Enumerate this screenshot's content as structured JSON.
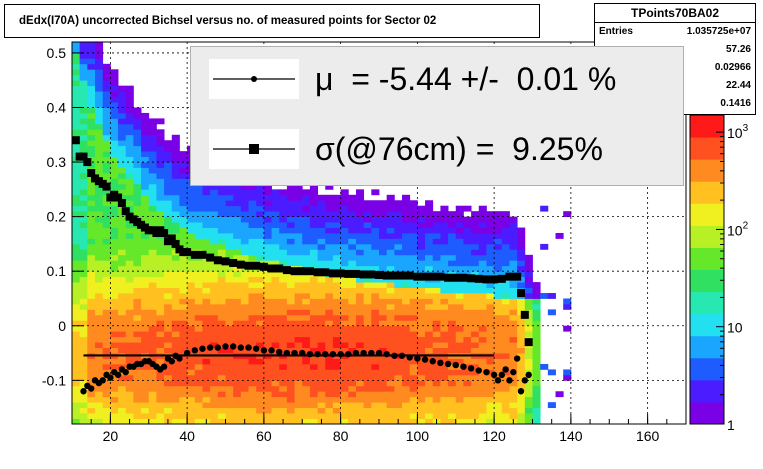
{
  "title": "dEdx(I70A) uncorrected Bichsel versus no. of measured points for Sector 02",
  "stats": {
    "name": "TPoints70BA02",
    "rows": [
      {
        "key": "Entries",
        "value": "1.035725e+07"
      },
      {
        "key": "",
        "value": "57.26"
      },
      {
        "key": "",
        "value": "0.02966"
      },
      {
        "key": "",
        "value": "22.44"
      },
      {
        "key": "",
        "value": "0.1416"
      }
    ]
  },
  "legend": {
    "mu_text": "μ  = -5.44 +/-  0.01 %",
    "sigma_text": "σ(@76cm) =  9.25%"
  },
  "colors": {
    "mean_markers": "#000000",
    "fit_line": "#000000",
    "palette": [
      "#7a00e6",
      "#4a1cff",
      "#1e5cff",
      "#1aa6ff",
      "#22e0f0",
      "#26e8b0",
      "#30e060",
      "#66e82a",
      "#b8f026",
      "#f0f020",
      "#ffc020",
      "#ff8a20",
      "#ff5020",
      "#ff1a1a"
    ]
  },
  "chart_data": {
    "type": "heatmap",
    "title": "dEdx(I70A) uncorrected Bichsel versus no. of measured points for Sector 02",
    "xlabel": "",
    "ylabel": "",
    "xlim": [
      10,
      170
    ],
    "ylim": [
      -0.18,
      0.52
    ],
    "x_ticks": [
      20,
      40,
      60,
      80,
      100,
      120,
      140,
      160
    ],
    "y_ticks": [
      -0.1,
      0,
      0.1,
      0.2,
      0.3,
      0.4,
      0.5
    ],
    "y_tick_labels": [
      "-0.1",
      "0",
      "0.1",
      "0.2",
      "0.3",
      "0.4",
      "0.5"
    ],
    "z_scale": "log",
    "z_range": [
      1,
      1500
    ],
    "z_ticks": [
      1,
      10,
      100,
      1000
    ],
    "z_tick_labels": [
      "1",
      "10",
      "10^2",
      "10^3"
    ],
    "grid": true,
    "density_model": {
      "mean_curve": [
        [
          10,
          0.5
        ],
        [
          15,
          0.38
        ],
        [
          20,
          0.3
        ],
        [
          30,
          0.21
        ],
        [
          40,
          0.15
        ],
        [
          60,
          0.1
        ],
        [
          80,
          0.07
        ],
        [
          100,
          0.05
        ],
        [
          120,
          0.035
        ],
        [
          130,
          0.03
        ]
      ],
      "core_center_y": -0.05,
      "core_spread_y": 0.07,
      "x_extent": [
        10,
        132
      ],
      "tail_cutoff_x": 126
    },
    "series": [
      {
        "name": "sigma",
        "marker": "square",
        "x": [
          11,
          12,
          13,
          14,
          15,
          16,
          17,
          18,
          19,
          20,
          21,
          22,
          23,
          24,
          25,
          26,
          27,
          28,
          29,
          30,
          31,
          32,
          33,
          34,
          35,
          36,
          37,
          38,
          39,
          40,
          42,
          44,
          46,
          48,
          50,
          52,
          54,
          56,
          58,
          60,
          62,
          64,
          66,
          68,
          70,
          72,
          74,
          76,
          78,
          80,
          82,
          84,
          86,
          88,
          90,
          92,
          94,
          96,
          98,
          100,
          102,
          104,
          106,
          108,
          110,
          112,
          114,
          116,
          118,
          120,
          122,
          124,
          126,
          127,
          128,
          129
        ],
        "y": [
          0.34,
          0.31,
          0.31,
          0.3,
          0.28,
          0.27,
          0.265,
          0.26,
          0.255,
          0.235,
          0.24,
          0.235,
          0.225,
          0.21,
          0.2,
          0.195,
          0.19,
          0.185,
          0.18,
          0.175,
          0.175,
          0.17,
          0.175,
          0.17,
          0.155,
          0.16,
          0.15,
          0.14,
          0.135,
          0.135,
          0.13,
          0.13,
          0.125,
          0.12,
          0.118,
          0.115,
          0.112,
          0.11,
          0.11,
          0.108,
          0.105,
          0.105,
          0.102,
          0.1,
          0.1,
          0.1,
          0.098,
          0.098,
          0.096,
          0.096,
          0.095,
          0.095,
          0.094,
          0.094,
          0.093,
          0.092,
          0.092,
          0.092,
          0.092,
          0.09,
          0.09,
          0.09,
          0.09,
          0.088,
          0.088,
          0.088,
          0.087,
          0.086,
          0.085,
          0.085,
          0.086,
          0.09,
          0.09,
          0.06,
          0.02,
          -0.03
        ]
      },
      {
        "name": "mean",
        "marker": "dot",
        "x": [
          13,
          14,
          15,
          16,
          17,
          18,
          19,
          20,
          21,
          22,
          23,
          24,
          25,
          26,
          27,
          28,
          29,
          30,
          31,
          32,
          33,
          34,
          35,
          36,
          37,
          38,
          40,
          42,
          44,
          46,
          48,
          50,
          52,
          54,
          56,
          58,
          60,
          62,
          64,
          66,
          68,
          70,
          72,
          74,
          76,
          78,
          80,
          82,
          84,
          86,
          88,
          90,
          92,
          94,
          96,
          98,
          100,
          102,
          104,
          106,
          108,
          110,
          112,
          114,
          116,
          118,
          120,
          121,
          122,
          123,
          124,
          125,
          126,
          127,
          128,
          129
        ],
        "y": [
          -0.12,
          -0.11,
          -0.115,
          -0.1,
          -0.105,
          -0.1,
          -0.09,
          -0.095,
          -0.085,
          -0.09,
          -0.08,
          -0.085,
          -0.075,
          -0.075,
          -0.07,
          -0.07,
          -0.065,
          -0.065,
          -0.07,
          -0.075,
          -0.08,
          -0.075,
          -0.06,
          -0.065,
          -0.055,
          -0.06,
          -0.05,
          -0.045,
          -0.042,
          -0.04,
          -0.04,
          -0.038,
          -0.038,
          -0.04,
          -0.04,
          -0.042,
          -0.045,
          -0.045,
          -0.048,
          -0.05,
          -0.05,
          -0.05,
          -0.052,
          -0.052,
          -0.052,
          -0.052,
          -0.052,
          -0.052,
          -0.05,
          -0.05,
          -0.05,
          -0.05,
          -0.052,
          -0.055,
          -0.055,
          -0.058,
          -0.06,
          -0.062,
          -0.065,
          -0.068,
          -0.07,
          -0.072,
          -0.075,
          -0.078,
          -0.082,
          -0.085,
          -0.09,
          -0.1,
          -0.09,
          -0.08,
          -0.1,
          -0.085,
          -0.06,
          -0.12,
          -0.1,
          -0.09
        ]
      },
      {
        "name": "fit",
        "marker": "line",
        "x": [
          13,
          120
        ],
        "y": [
          -0.0544,
          -0.0544
        ]
      }
    ]
  }
}
